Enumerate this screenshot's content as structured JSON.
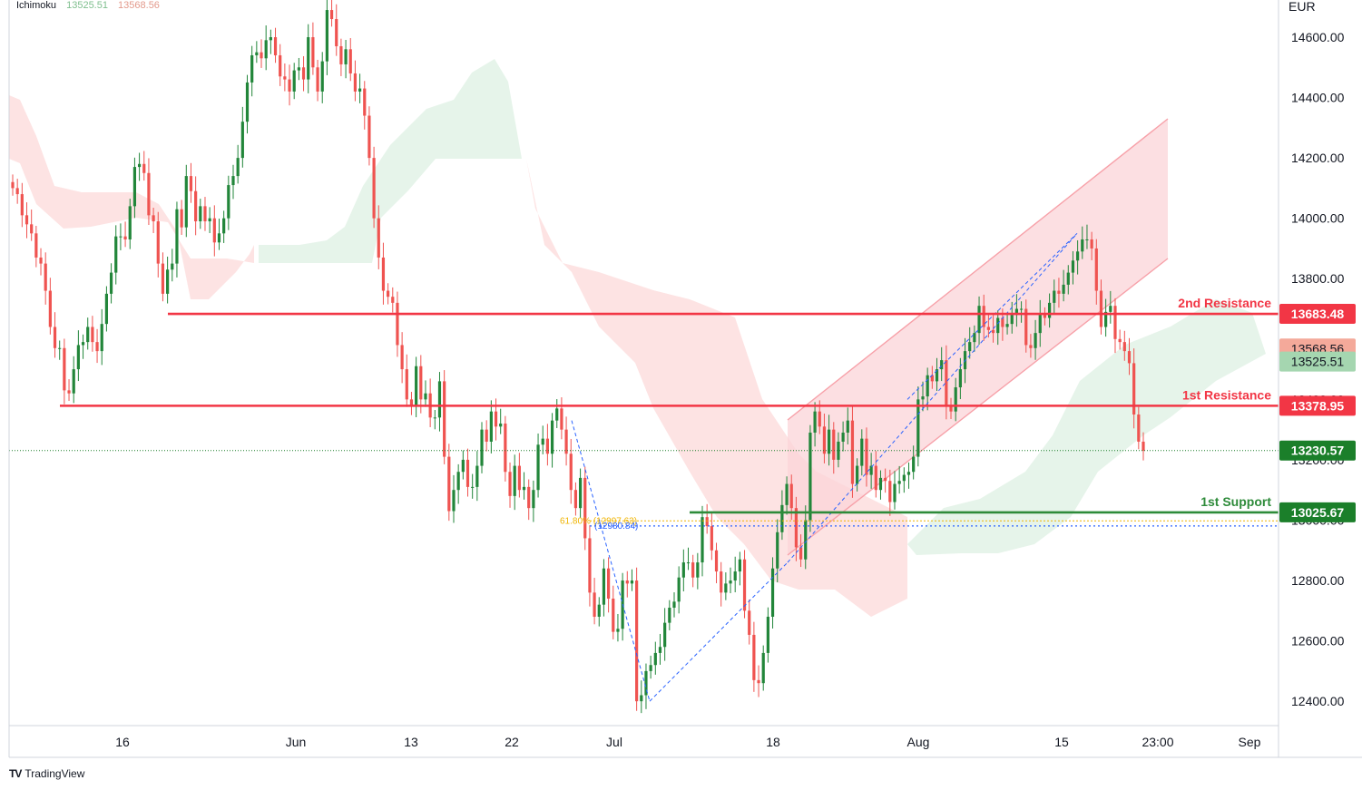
{
  "header": {
    "indicator": "Ichimoku",
    "value_lead": "13525.51",
    "value_lag": "13568.56"
  },
  "brand": {
    "name": "TradingView",
    "logo": "TV"
  },
  "colors": {
    "up": "#22863a",
    "down": "#ef5350",
    "resistance": "#f23645",
    "support": "#2e8b3a",
    "price_box": "#1b7f2a",
    "cloud_bear": "#fde3e3",
    "cloud_bull": "#e6f4ea",
    "channel_fill": "#fbd4d8",
    "channel_line": "#f7a1a9",
    "fib": "#f0b400",
    "zigzag": "#2962ff"
  },
  "chart_data": {
    "type": "candlestick",
    "currency": "EUR",
    "ylim": [
      12330,
      14720
    ],
    "y_ticks": [
      "14600.00",
      "14400.00",
      "14200.00",
      "14000.00",
      "13800.00",
      "13400.00",
      "13200.00",
      "13000.00",
      "12800.00",
      "12600.00",
      "12400.00"
    ],
    "x_ticks": [
      "16",
      "Jun",
      "13",
      "22",
      "Jul",
      "18",
      "Aug",
      "15",
      "23:00",
      "Sep"
    ],
    "levels": [
      {
        "name": "2nd Resistance",
        "value": 13683.48,
        "label": "13683.48",
        "kind": "resistance"
      },
      {
        "name": "1st Resistance",
        "value": 13378.95,
        "label": "13378.95",
        "kind": "resistance"
      },
      {
        "name": "1st Support",
        "value": 13025.67,
        "label": "13025.67",
        "kind": "support"
      }
    ],
    "indicator_boxes": [
      {
        "label": "13568.56",
        "value": 13568.56,
        "color": "#f4a99a"
      },
      {
        "label": "13525.51",
        "value": 13525.51,
        "color": "#a5d6b0"
      }
    ],
    "last_price": {
      "label": "13230.57",
      "value": 13230.57
    },
    "fib": {
      "label": "61.80% (12997.63)",
      "value": 12997.63
    },
    "fib_low": {
      "label": "(12980.84)",
      "value": 12980.84
    },
    "channel": {
      "upper": [
        [
          13360,
          14320
        ]
      ],
      "lower": [
        [
          12880,
          13880
        ]
      ]
    },
    "closes": [
      14100,
      14080,
      14010,
      13980,
      13950,
      13870,
      13850,
      13760,
      13640,
      13570,
      13570,
      13430,
      13420,
      13500,
      13580,
      13590,
      13640,
      13590,
      13560,
      13650,
      13750,
      13820,
      13940,
      13940,
      13930,
      14040,
      14170,
      14180,
      14150,
      14010,
      13990,
      13850,
      13750,
      13830,
      13850,
      14030,
      13970,
      14140,
      14090,
      13990,
      14040,
      13990,
      14000,
      13920,
      13950,
      14000,
      14110,
      14140,
      14200,
      14320,
      14450,
      14540,
      14550,
      14530,
      14590,
      14600,
      14540,
      14470,
      14460,
      14420,
      14490,
      14500,
      14460,
      14600,
      14500,
      14420,
      14520,
      14690,
      14660,
      14570,
      14510,
      14560,
      14480,
      14420,
      14430,
      14340,
      14200,
      14000,
      13870,
      13760,
      13740,
      13720,
      13580,
      13500,
      13400,
      13380,
      13510,
      13400,
      13420,
      13340,
      13340,
      13460,
      13210,
      13030,
      13100,
      13160,
      13200,
      13110,
      13110,
      13180,
      13300,
      13260,
      13360,
      13310,
      13320,
      13160,
      13080,
      13180,
      13100,
      13110,
      13040,
      13100,
      13250,
      13270,
      13220,
      13330,
      13370,
      13300,
      13220,
      13100,
      13040,
      13140,
      12940,
      12760,
      12680,
      12720,
      12840,
      12740,
      12630,
      12640,
      12800,
      12790,
      12800,
      12400,
      12420,
      12500,
      12520,
      12560,
      12580,
      12660,
      12710,
      12730,
      12810,
      12860,
      12860,
      12810,
      12860,
      13010,
      12980,
      12900,
      12830,
      12760,
      12790,
      12800,
      12830,
      12870,
      12700,
      12620,
      12470,
      12460,
      12560,
      12680,
      12840,
      12960,
      13050,
      13120,
      13040,
      12910,
      12870,
      13000,
      13290,
      13360,
      13310,
      13220,
      13300,
      13200,
      13260,
      13290,
      13330,
      13120,
      13180,
      13270,
      13150,
      13180,
      13100,
      13140,
      13130,
      13060,
      13120,
      13130,
      13150,
      13160,
      13210,
      13400,
      13410,
      13480,
      13460,
      13500,
      13530,
      13380,
      13360,
      13440,
      13500,
      13560,
      13590,
      13620,
      13710,
      13640,
      13630,
      13620,
      13670,
      13640,
      13650,
      13680,
      13700,
      13700,
      13580,
      13570,
      13620,
      13680,
      13670,
      13720,
      13760,
      13750,
      13780,
      13820,
      13860,
      13890,
      13930,
      13930,
      13900,
      13760,
      13640,
      13690,
      13710,
      13600,
      13590,
      13560,
      13520,
      13350,
      13260,
      13230
    ]
  }
}
